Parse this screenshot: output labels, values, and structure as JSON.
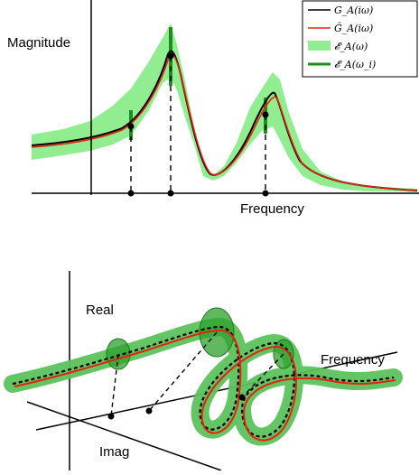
{
  "top_panel": {
    "y_label": "Magnitude",
    "x_label": "Frequency",
    "legend": [
      {
        "label": "G_A(iω)",
        "style": "black line"
      },
      {
        "label": "Ĝ_A(iω)",
        "style": "red line"
      },
      {
        "label": "𝓔_A(ω)",
        "style": "light green band"
      },
      {
        "label": "𝓔_A(ω_i)",
        "style": "dark green bars"
      }
    ]
  },
  "bottom_panel": {
    "real_label": "Real",
    "imag_label": "Imag",
    "frequency_label": "Frequency"
  },
  "colors": {
    "true_response": "#000000",
    "estimate": "#e8200c",
    "uncertainty_band": "#90ee90",
    "sample_bars": "#1f8c1f",
    "axes": "#000000"
  }
}
